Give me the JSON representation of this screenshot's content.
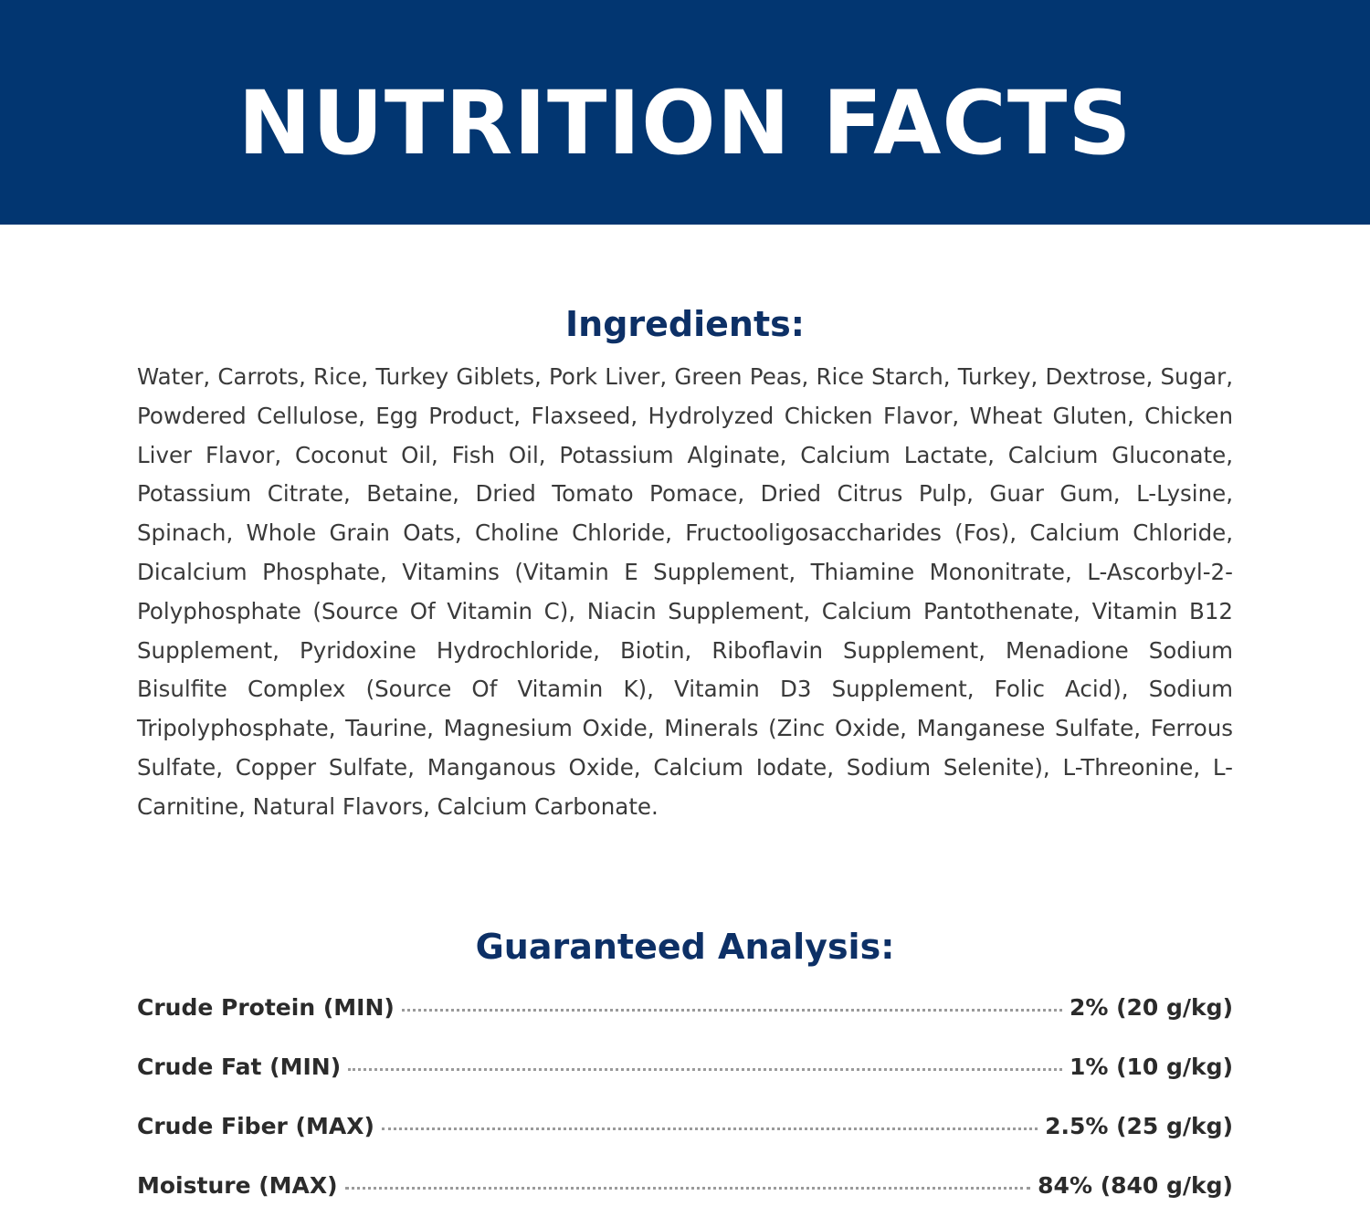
{
  "header": {
    "title": "NUTRITION FACTS"
  },
  "ingredients": {
    "heading": "Ingredients:",
    "text": "Water, Carrots, Rice, Turkey Giblets, Pork Liver, Green Peas, Rice Starch, Turkey, Dextrose, Sugar, Powdered Cellulose, Egg Product, Flaxseed, Hydrolyzed Chicken Flavor, Wheat Gluten, Chicken Liver Flavor, Coconut Oil, Fish Oil, Potassium Alginate, Calcium Lactate, Calcium Gluconate, Potassium Citrate, Betaine, Dried Tomato Pomace, Dried Citrus Pulp, Guar Gum, L-Lysine, Spinach, Whole Grain Oats, Choline Chloride, Fructooligosaccharides (Fos), Calcium Chloride, Dicalcium Phosphate, Vitamins (Vitamin E Supplement, Thiamine Mononitrate, L-Ascorbyl-2-Polyphosphate (Source Of Vitamin C), Niacin Supplement, Calcium Pantothenate, Vitamin B12 Supplement, Pyridoxine Hydrochloride, Biotin, Riboflavin Supplement, Menadione Sodium Bisulfite Complex (Source Of Vitamin K), Vitamin D3 Supplement, Folic Acid), Sodium Tripolyphosphate, Taurine, Magnesium Oxide, Minerals (Zinc Oxide, Manganese Sulfate, Ferrous Sulfate, Copper Sulfate, Manganous Oxide, Calcium Iodate, Sodium Selenite), L-Threonine, L-Carnitine, Natural Flavors, Calcium Carbonate."
  },
  "analysis": {
    "heading": "Guaranteed Analysis:",
    "rows": [
      {
        "label": "Crude Protein (MIN)",
        "value": "2% (20 g/kg)"
      },
      {
        "label": "Crude Fat (MIN)",
        "value": "1% (10 g/kg)"
      },
      {
        "label": "Crude Fiber (MAX)",
        "value": "2.5% (25 g/kg)"
      },
      {
        "label": "Moisture (MAX)",
        "value": "84% (840 g/kg)"
      }
    ]
  }
}
